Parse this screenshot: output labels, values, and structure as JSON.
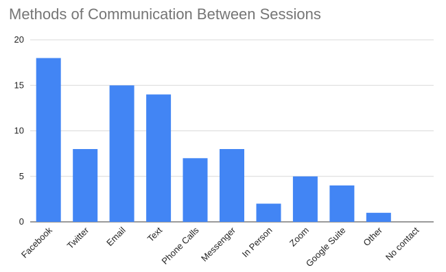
{
  "chart_data": {
    "type": "bar",
    "title": "Methods of Communication Between Sessions",
    "xlabel": "",
    "ylabel": "",
    "categories": [
      "Facebook",
      "Twitter",
      "Email",
      "Text",
      "Phone Calls",
      "Messenger",
      "In Person",
      "Zoom",
      "Google Suite",
      "Other",
      "No contact"
    ],
    "values": [
      18,
      8,
      15,
      14,
      7,
      8,
      2,
      5,
      4,
      1,
      0
    ],
    "ylim": [
      0,
      20
    ],
    "yticks": [
      0,
      5,
      10,
      15,
      20
    ],
    "grid": true,
    "legend": "none",
    "bar_color": "#4285f4",
    "gridline_color": "#d9d9d9"
  }
}
